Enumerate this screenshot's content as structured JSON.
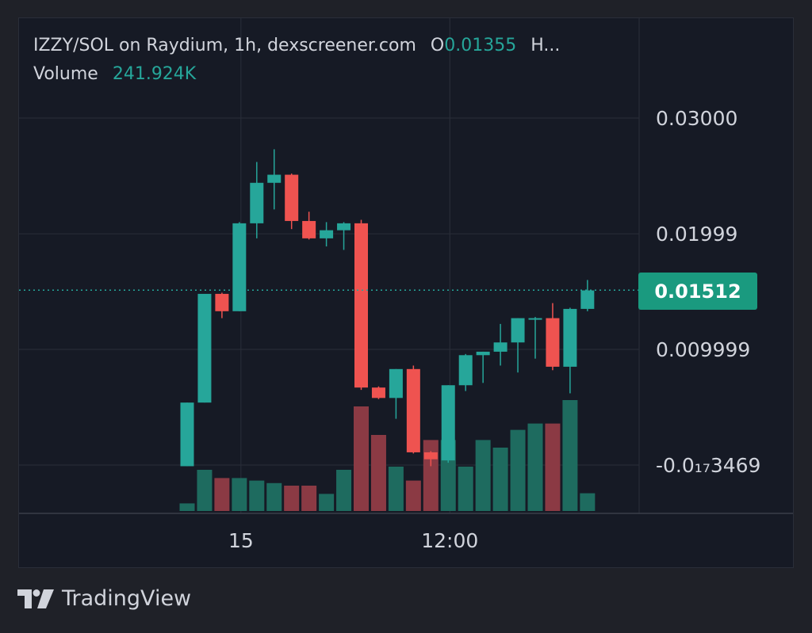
{
  "legend": {
    "title": "IZZY/SOL on Raydium, 1h, dexscreener.com",
    "open_label": "O",
    "open_value": "0.01355",
    "high_label": "H...",
    "volume_label": "Volume",
    "volume_value": "241.924K"
  },
  "last_price_label": "0.01512",
  "footer": {
    "brand": "TradingView",
    "logo_icon": "tradingview-logo-icon"
  },
  "colors": {
    "up": "#26a69a",
    "down": "#ef5350",
    "up_volume": "#1e6b5f",
    "down_volume": "#8b3a44",
    "background": "#161a25",
    "grid": "#2a2e39",
    "text": "#d1d4dc"
  },
  "chart_data": {
    "type": "candlestick",
    "symbol": "IZZY/SOL",
    "interval": "1h",
    "y_ticks": [
      {
        "value": 0.03,
        "label": "0.03000"
      },
      {
        "value": 0.01999,
        "label": "0.01999"
      },
      {
        "value": 0.009999,
        "label": "0.009999"
      },
      {
        "value": -3.469e-17,
        "label": "-0.0₁₇3469"
      }
    ],
    "x_ticks": [
      "15",
      "12:00"
    ],
    "ylim": [
      -0.0041,
      0.0312
    ],
    "last_price": 0.01512,
    "candles": [
      {
        "o": -0.0001,
        "h": 0.0054,
        "l": -0.0001,
        "c": 0.0054,
        "v": 12
      },
      {
        "o": 0.0054,
        "h": 0.0147,
        "l": 0.0054,
        "c": 0.0148,
        "v": 65
      },
      {
        "o": 0.0148,
        "h": 0.0149,
        "l": 0.0127,
        "c": 0.0133,
        "v": 52
      },
      {
        "o": 0.0133,
        "h": 0.021,
        "l": 0.0133,
        "c": 0.0209,
        "v": 52
      },
      {
        "o": 0.0209,
        "h": 0.0262,
        "l": 0.0196,
        "c": 0.0244,
        "v": 48
      },
      {
        "o": 0.0244,
        "h": 0.0273,
        "l": 0.0221,
        "c": 0.0251,
        "v": 44
      },
      {
        "o": 0.0251,
        "h": 0.0252,
        "l": 0.0204,
        "c": 0.0211,
        "v": 40
      },
      {
        "o": 0.0211,
        "h": 0.0219,
        "l": 0.0195,
        "c": 0.0196,
        "v": 40
      },
      {
        "o": 0.0196,
        "h": 0.021,
        "l": 0.0189,
        "c": 0.0203,
        "v": 27
      },
      {
        "o": 0.0203,
        "h": 0.021,
        "l": 0.0186,
        "c": 0.0209,
        "v": 65
      },
      {
        "o": 0.0209,
        "h": 0.0212,
        "l": 0.0065,
        "c": 0.0067,
        "v": 165
      },
      {
        "o": 0.0067,
        "h": 0.0068,
        "l": 0.0057,
        "c": 0.0058,
        "v": 120
      },
      {
        "o": 0.0058,
        "h": 0.0083,
        "l": 0.004,
        "c": 0.0083,
        "v": 70
      },
      {
        "o": 0.0083,
        "h": 0.0086,
        "l": 0.001,
        "c": 0.0011,
        "v": 48
      },
      {
        "o": 0.0011,
        "h": 0.0012,
        "l": -0.0001,
        "c": 0.0005,
        "v": 112
      },
      {
        "o": 0.0004,
        "h": 0.0069,
        "l": 0.0002,
        "c": 0.0069,
        "v": 112
      },
      {
        "o": 0.0069,
        "h": 0.0096,
        "l": 0.0064,
        "c": 0.0095,
        "v": 70
      },
      {
        "o": 0.0095,
        "h": 0.0098,
        "l": 0.0071,
        "c": 0.0098,
        "v": 112
      },
      {
        "o": 0.0098,
        "h": 0.0122,
        "l": 0.0086,
        "c": 0.0106,
        "v": 100
      },
      {
        "o": 0.0106,
        "h": 0.0127,
        "l": 0.008,
        "c": 0.0127,
        "v": 128
      },
      {
        "o": 0.0127,
        "h": 0.0128,
        "l": 0.0092,
        "c": 0.0127,
        "v": 138
      },
      {
        "o": 0.0127,
        "h": 0.014,
        "l": 0.0082,
        "c": 0.0085,
        "v": 138
      },
      {
        "o": 0.0085,
        "h": 0.0136,
        "l": 0.0062,
        "c": 0.0135,
        "v": 175
      },
      {
        "o": 0.0135,
        "h": 0.016,
        "l": 0.0133,
        "c": 0.0151,
        "v": 28
      }
    ],
    "x_tick_candle_index": [
      3,
      15
    ]
  }
}
